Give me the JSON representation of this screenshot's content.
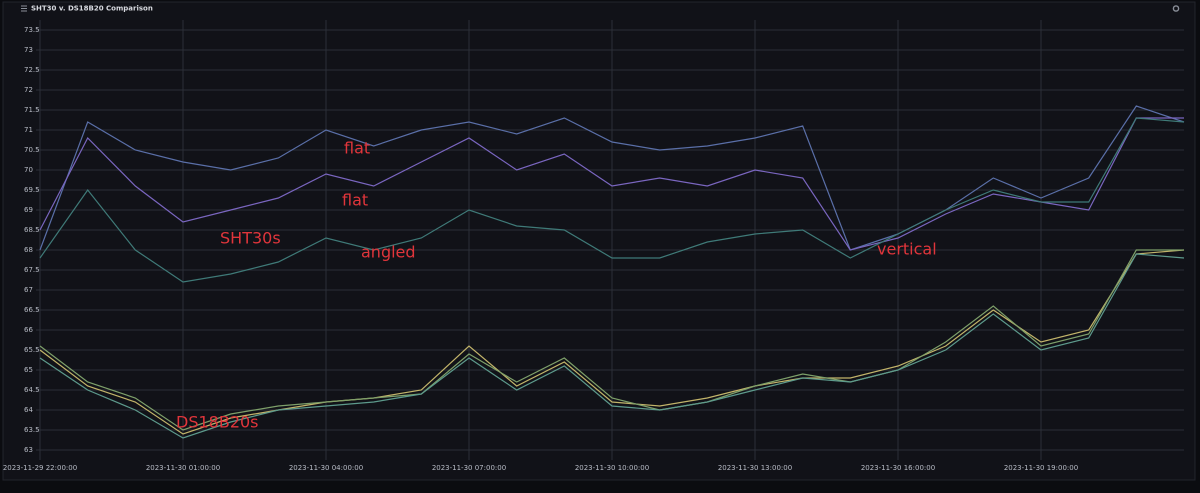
{
  "chart_data": {
    "type": "line",
    "title": "SHT30 v. DS18B20 Comparison",
    "x": [
      "2023-11-29 22:00:00",
      "2023-11-29 23:00:00",
      "2023-11-30 00:00:00",
      "2023-11-30 01:00:00",
      "2023-11-30 02:00:00",
      "2023-11-30 03:00:00",
      "2023-11-30 04:00:00",
      "2023-11-30 05:00:00",
      "2023-11-30 06:00:00",
      "2023-11-30 07:00:00",
      "2023-11-30 08:00:00",
      "2023-11-30 09:00:00",
      "2023-11-30 10:00:00",
      "2023-11-30 11:00:00",
      "2023-11-30 12:00:00",
      "2023-11-30 13:00:00",
      "2023-11-30 14:00:00",
      "2023-11-30 15:00:00",
      "2023-11-30 16:00:00",
      "2023-11-30 17:00:00",
      "2023-11-30 18:00:00",
      "2023-11-30 19:00:00",
      "2023-11-30 20:00:00",
      "2023-11-30 21:00:00",
      "2023-11-30 22:00:00"
    ],
    "xlim": [
      "2023-11-29 22:00:00",
      "2023-11-30 22:00:00"
    ],
    "xticks": [
      "2023-11-29 22:00:00",
      "2023-11-30 01:00:00",
      "2023-11-30 04:00:00",
      "2023-11-30 07:00:00",
      "2023-11-30 10:00:00",
      "2023-11-30 13:00:00",
      "2023-11-30 16:00:00",
      "2023-11-30 19:00:00"
    ],
    "ylim": [
      62.75,
      73.75
    ],
    "yticks": [
      63,
      63.5,
      64,
      64.5,
      65,
      65.5,
      66,
      66.5,
      67,
      67.5,
      68,
      68.5,
      69,
      69.5,
      70,
      70.5,
      71,
      71.5,
      72,
      72.5,
      73,
      73.5
    ],
    "grid": true,
    "series": [
      {
        "color": "#5a6fa8",
        "values": [
          68.0,
          71.2,
          70.5,
          70.2,
          70.0,
          70.3,
          71.0,
          70.6,
          71.0,
          71.2,
          70.9,
          71.3,
          70.7,
          70.5,
          70.6,
          70.8,
          71.1,
          68.0,
          68.4,
          69.0,
          69.8,
          69.3,
          69.8,
          71.6,
          71.2
        ]
      },
      {
        "color": "#7a66c0",
        "values": [
          68.5,
          70.8,
          69.6,
          68.7,
          69.0,
          69.3,
          69.9,
          69.6,
          70.2,
          70.8,
          70.0,
          70.4,
          69.6,
          69.8,
          69.6,
          70.0,
          69.8,
          68.0,
          68.3,
          68.9,
          69.4,
          69.2,
          69.0,
          71.3,
          71.3
        ]
      },
      {
        "color": "#3f7a78",
        "values": [
          67.8,
          69.5,
          68.0,
          67.2,
          67.4,
          67.7,
          68.3,
          68.0,
          68.3,
          69.0,
          68.6,
          68.5,
          67.8,
          67.8,
          68.2,
          68.4,
          68.5,
          67.8,
          68.4,
          69.0,
          69.5,
          69.2,
          69.2,
          71.3,
          71.2
        ]
      },
      {
        "color": "#c2b46a",
        "values": [
          65.5,
          64.6,
          64.2,
          63.4,
          63.8,
          64.0,
          64.2,
          64.3,
          64.5,
          65.6,
          64.6,
          65.2,
          64.2,
          64.1,
          64.3,
          64.6,
          64.8,
          64.8,
          65.1,
          65.6,
          66.5,
          65.7,
          66.0,
          67.9,
          68.0
        ]
      },
      {
        "color": "#7ea06a",
        "values": [
          65.6,
          64.7,
          64.3,
          63.5,
          63.9,
          64.1,
          64.2,
          64.3,
          64.4,
          65.4,
          64.7,
          65.3,
          64.3,
          64.0,
          64.2,
          64.6,
          64.9,
          64.7,
          65.0,
          65.7,
          66.6,
          65.6,
          65.9,
          68.0,
          68.0
        ]
      },
      {
        "color": "#5d9a8c",
        "values": [
          65.3,
          64.5,
          64.0,
          63.3,
          63.7,
          64.0,
          64.1,
          64.2,
          64.4,
          65.3,
          64.5,
          65.1,
          64.1,
          64.0,
          64.2,
          64.5,
          64.8,
          64.7,
          65.0,
          65.5,
          66.4,
          65.5,
          65.8,
          67.9,
          67.8
        ]
      }
    ],
    "annotations": [
      "flat",
      "flat",
      "SHT30s",
      "angled",
      "vertical",
      "DS18B20s"
    ]
  }
}
